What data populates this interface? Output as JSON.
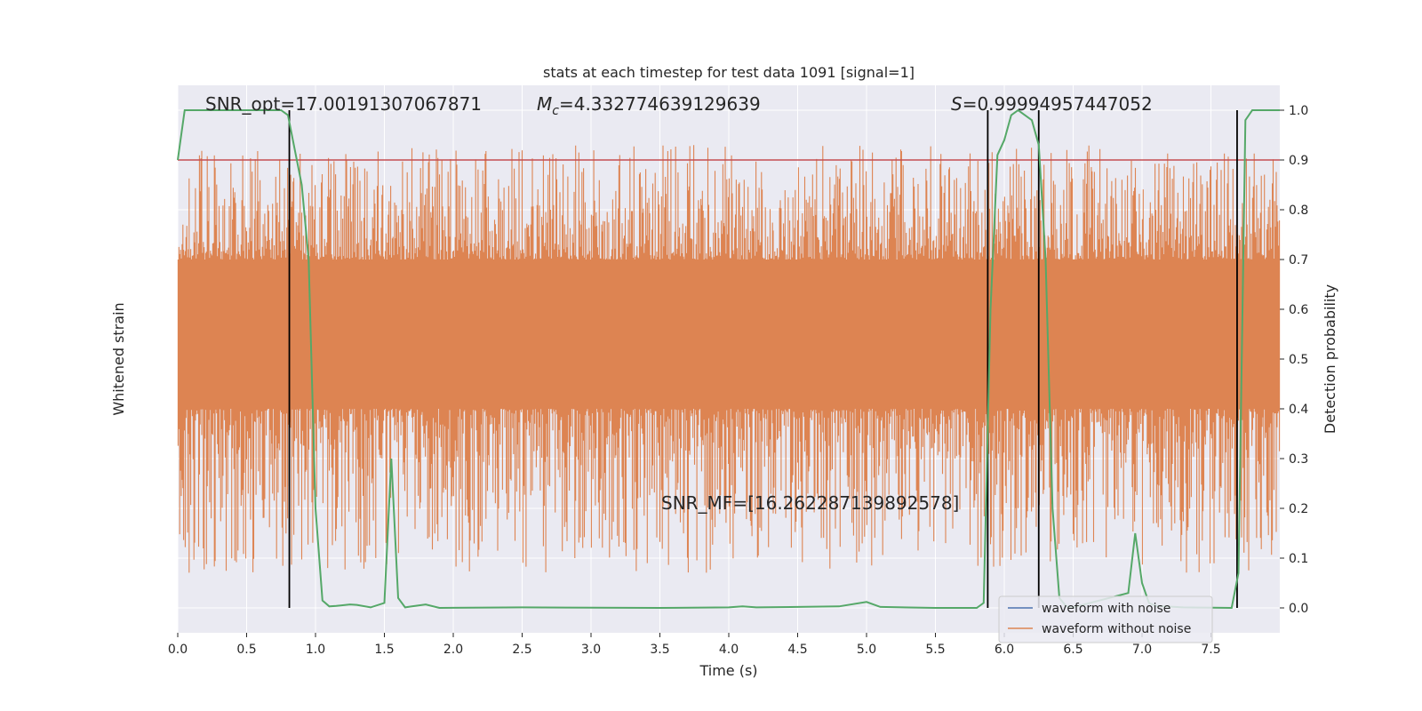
{
  "chart_data": {
    "type": "line",
    "title": "stats at each timestep for test data 1091 [signal=1]",
    "xlabel": "Time (s)",
    "ylabel_left": "Whitened strain",
    "ylabel_right": "Detection probability",
    "xlim": [
      0.0,
      8.0
    ],
    "ylim_right": [
      -0.05,
      1.05
    ],
    "x_ticks": [
      0.0,
      0.5,
      1.0,
      1.5,
      2.0,
      2.5,
      3.0,
      3.5,
      4.0,
      4.5,
      5.0,
      5.5,
      6.0,
      6.5,
      7.0,
      7.5
    ],
    "x_tick_labels": [
      "0.0",
      "0.5",
      "1.0",
      "1.5",
      "2.0",
      "2.5",
      "3.0",
      "3.5",
      "4.0",
      "4.5",
      "5.0",
      "5.5",
      "6.0",
      "6.5",
      "7.0",
      "7.5"
    ],
    "y_ticks_right": [
      0.0,
      0.1,
      0.2,
      0.3,
      0.4,
      0.5,
      0.6,
      0.7,
      0.8,
      0.9,
      1.0
    ],
    "y_tick_labels_right": [
      "0.0",
      "0.1",
      "0.2",
      "0.3",
      "0.4",
      "0.5",
      "0.6",
      "0.7",
      "0.8",
      "0.9",
      "1.0"
    ],
    "grid": true,
    "legend_position": "bottom-right",
    "colors": {
      "plot_background": "#eaeaf2",
      "grid": "#ffffff",
      "waveform_with_noise": "#4c72b0",
      "waveform_without_noise": "#dd8452",
      "detection_probability": "#55a868",
      "threshold": "#c44e52",
      "markers": "#000000"
    },
    "threshold": 0.9,
    "vertical_markers": [
      0.81,
      5.88,
      6.25,
      7.69
    ],
    "annotations": {
      "snr_opt": "SNR_opt=17.00191307067871",
      "mc_prefix": "M",
      "mc_sub": "c",
      "mc_value": "=4.332774639129639",
      "s_prefix": "S",
      "s_value": "=0.99994957447052",
      "snr_mf": "SNR_MF=[16.262287139892578]"
    },
    "series": [
      {
        "name": "waveform with noise",
        "kind": "noise",
        "center": 0.5,
        "envelope": [
          0.5,
          0.5
        ]
      },
      {
        "name": "waveform without noise",
        "kind": "noise",
        "center": 0.55,
        "band": [
          0.4,
          0.7
        ],
        "spike_range": [
          0.07,
          0.93
        ]
      },
      {
        "name": "detection probability",
        "kind": "line",
        "x": [
          0.0,
          0.05,
          0.3,
          0.5,
          0.75,
          0.8,
          0.9,
          0.95,
          1.0,
          1.05,
          1.1,
          1.15,
          1.25,
          1.3,
          1.4,
          1.5,
          1.55,
          1.6,
          1.65,
          1.7,
          1.8,
          1.9,
          2.5,
          3.5,
          4.0,
          4.1,
          4.2,
          4.8,
          5.0,
          5.1,
          5.5,
          5.8,
          5.85,
          5.9,
          5.95,
          6.0,
          6.05,
          6.1,
          6.2,
          6.25,
          6.3,
          6.35,
          6.4,
          6.45,
          6.5,
          6.9,
          6.95,
          7.0,
          7.05,
          7.1,
          7.3,
          7.65,
          7.7,
          7.75,
          7.8,
          7.9,
          8.0
        ],
        "y": [
          0.9,
          1.0,
          1.0,
          1.0,
          1.0,
          0.99,
          0.85,
          0.7,
          0.2,
          0.015,
          0.003,
          0.004,
          0.007,
          0.006,
          0.001,
          0.01,
          0.3,
          0.02,
          0.001,
          0.003,
          0.007,
          0.0,
          0.001,
          0.0,
          0.001,
          0.003,
          0.001,
          0.003,
          0.012,
          0.002,
          0.0,
          0.0,
          0.01,
          0.6,
          0.91,
          0.94,
          0.99,
          1.0,
          0.98,
          0.93,
          0.7,
          0.2,
          0.02,
          0.003,
          0.001,
          0.03,
          0.15,
          0.05,
          0.01,
          0.004,
          0.001,
          0.0,
          0.07,
          0.98,
          1.0,
          1.0,
          1.0
        ]
      }
    ]
  }
}
